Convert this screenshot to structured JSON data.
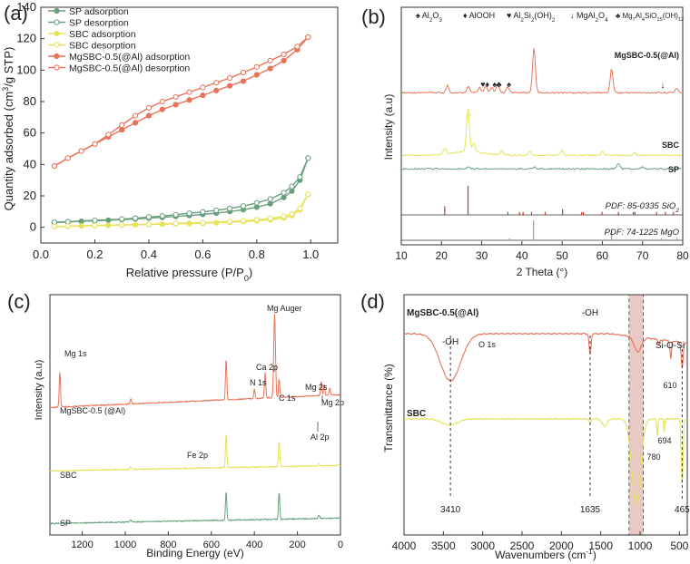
{
  "colors": {
    "sp": "#6a9f7e",
    "sbc": "#e6e25c",
    "mg": "#e8735a",
    "ref_sio2": "#c0392b",
    "ref_mgo": "#9a9a9a",
    "highlight": "#e8c9c4",
    "axis": "#333333"
  },
  "chart_data": [
    {
      "panel": "(a)",
      "type": "line",
      "xlabel": "Relative pressure (P/P",
      "xlabel_sub": "0",
      "xlabel_tail": ")",
      "ylabel": "Quantity adsorbed (cm",
      "ylabel_sup": "3",
      "ylabel_tail": "/g STP)",
      "xlim": [
        0,
        1.1
      ],
      "ylim": [
        -10,
        140
      ],
      "xticks": [
        "0.0",
        "0.2",
        "0.4",
        "0.6",
        "0.8",
        "1.0"
      ],
      "xtick_values": [
        0,
        0.2,
        0.4,
        0.6,
        0.8,
        1.0
      ],
      "yticks": [
        "0",
        "20",
        "40",
        "60",
        "80",
        "100",
        "120",
        "140"
      ],
      "ytick_values": [
        0,
        20,
        40,
        60,
        80,
        100,
        120,
        140
      ],
      "legend_position": "top-left",
      "series": [
        {
          "name": "SP adsorption",
          "color_key": "sp",
          "filled": true,
          "x": [
            0.05,
            0.1,
            0.15,
            0.2,
            0.25,
            0.3,
            0.35,
            0.4,
            0.45,
            0.5,
            0.55,
            0.6,
            0.65,
            0.7,
            0.75,
            0.8,
            0.85,
            0.9,
            0.93,
            0.96,
            0.99
          ],
          "y": [
            3,
            3.4,
            3.8,
            4.1,
            4.5,
            4.9,
            5.3,
            5.8,
            6.3,
            6.9,
            7.5,
            8.2,
            9,
            10,
            11.2,
            12.8,
            15,
            19,
            23,
            30,
            44
          ]
        },
        {
          "name": "SP desorption",
          "color_key": "sp",
          "filled": false,
          "x": [
            0.99,
            0.96,
            0.93,
            0.9,
            0.85,
            0.8,
            0.75,
            0.7,
            0.65,
            0.6,
            0.55,
            0.5,
            0.45,
            0.4,
            0.35,
            0.3,
            0.2,
            0.1,
            0.05
          ],
          "y": [
            44,
            32,
            26,
            22,
            18,
            15.5,
            13.5,
            12,
            10.8,
            9.8,
            8.9,
            8,
            7.2,
            6.5,
            5.8,
            5.2,
            4.4,
            3.6,
            3.2
          ]
        },
        {
          "name": "SBC adsorption",
          "color_key": "sbc",
          "filled": true,
          "x": [
            0.05,
            0.1,
            0.15,
            0.2,
            0.25,
            0.3,
            0.35,
            0.4,
            0.45,
            0.5,
            0.55,
            0.6,
            0.65,
            0.7,
            0.75,
            0.8,
            0.85,
            0.9,
            0.93,
            0.96,
            0.99
          ],
          "y": [
            0.4,
            0.6,
            0.8,
            1,
            1.2,
            1.4,
            1.6,
            1.8,
            2.0,
            2.2,
            2.4,
            2.6,
            2.9,
            3.2,
            3.6,
            4.1,
            4.8,
            6,
            7.5,
            11,
            21
          ]
        },
        {
          "name": "SBC desorption",
          "color_key": "sbc",
          "filled": false,
          "x": [
            0.99,
            0.96,
            0.93,
            0.9,
            0.85,
            0.8,
            0.75,
            0.7,
            0.6,
            0.5,
            0.4,
            0.3,
            0.2,
            0.1,
            0.05
          ],
          "y": [
            21,
            12,
            8.5,
            7,
            5.6,
            4.8,
            4.2,
            3.7,
            3,
            2.5,
            2,
            1.6,
            1.2,
            0.8,
            0.5
          ]
        },
        {
          "name": "MgSBC-0.5(@Al) adsorption",
          "color_key": "mg",
          "filled": true,
          "x": [
            0.05,
            0.1,
            0.15,
            0.2,
            0.25,
            0.3,
            0.35,
            0.4,
            0.45,
            0.5,
            0.55,
            0.6,
            0.65,
            0.7,
            0.75,
            0.8,
            0.85,
            0.9,
            0.95,
            0.99
          ],
          "y": [
            39,
            44,
            48.5,
            53,
            57.5,
            62,
            66.5,
            71,
            75,
            78,
            81,
            84,
            87,
            90,
            93,
            97,
            101,
            106,
            113,
            121
          ]
        },
        {
          "name": "MgSBC-0.5(@Al) desorption",
          "color_key": "mg",
          "filled": false,
          "x": [
            0.99,
            0.95,
            0.9,
            0.85,
            0.8,
            0.75,
            0.7,
            0.65,
            0.6,
            0.55,
            0.5,
            0.45,
            0.4,
            0.35,
            0.3,
            0.25,
            0.2,
            0.15,
            0.1,
            0.05
          ],
          "y": [
            121,
            115,
            110,
            106,
            102,
            98.5,
            95,
            92,
            89,
            86,
            83,
            80,
            76,
            71,
            65,
            59,
            53,
            48.5,
            44,
            39
          ]
        }
      ]
    },
    {
      "panel": "(b)",
      "type": "line",
      "xlabel": "2 Theta (°)",
      "ylabel": "Intensity (a.u)",
      "xlim": [
        10,
        80
      ],
      "xticks": [
        "10",
        "20",
        "30",
        "40",
        "50",
        "60",
        "70",
        "80"
      ],
      "xtick_values": [
        10,
        20,
        30,
        40,
        50,
        60,
        70,
        80
      ],
      "legend_items": [
        "Al",
        "AlOOH",
        "Al",
        "MgAl",
        "Mg"
      ],
      "legend_text": {
        "al2o3": [
          "Al",
          "2",
          "O",
          "3"
        ],
        "alooh": "AlOOH",
        "alsi": [
          "Al",
          "2",
          "Si",
          "2",
          "(OH)",
          "2"
        ],
        "mgal": [
          "MgAl",
          "2",
          "O",
          "4"
        ],
        "mgalsi": [
          "Mg",
          "7",
          "Al",
          "4",
          "SiO",
          "15",
          "(OH)",
          "12"
        ]
      },
      "series": [
        {
          "name": "MgSBC-0.5(@Al)",
          "color_key": "mg",
          "peaks": [
            [
              21.5,
              8
            ],
            [
              26.6,
              7
            ],
            [
              29.5,
              6
            ],
            [
              31,
              7
            ],
            [
              32.5,
              6
            ],
            [
              34,
              9
            ],
            [
              36.5,
              6
            ],
            [
              43,
              50
            ],
            [
              62.3,
              26
            ],
            [
              78.5,
              5
            ]
          ]
        },
        {
          "name": "SBC",
          "color_key": "sbc",
          "peaks": [
            [
              20.8,
              7
            ],
            [
              26.6,
              48
            ],
            [
              28,
              10
            ],
            [
              35,
              5
            ],
            [
              42,
              4
            ],
            [
              50,
              6
            ],
            [
              60,
              4
            ],
            [
              68,
              3
            ]
          ]
        },
        {
          "name": "SP",
          "color_key": "sp",
          "peaks": [
            [
              26.6,
              2
            ],
            [
              43,
              2
            ],
            [
              64,
              6
            ],
            [
              70,
              2
            ]
          ]
        }
      ],
      "references": [
        {
          "name": "PDF: 85-0335 SiO",
          "sub": "2",
          "color_key": "ref_sio2",
          "positions": [
            20.8,
            26.6,
            36.5,
            39.4,
            40.3,
            42.4,
            45.8,
            50.1,
            54.9,
            55.3,
            59.9,
            64.0,
            67.7,
            68.1,
            73.5,
            75.7,
            77.7
          ],
          "heights": [
            0.3,
            1,
            0.1,
            0.1,
            0.1,
            0.1,
            0.1,
            0.2,
            0.1,
            0.1,
            0.1,
            0.1,
            0.1,
            0.1,
            0.1,
            0.1,
            0.1
          ]
        },
        {
          "name": "PDF: 74-1225 MgO",
          "sub": "",
          "color_key": "ref_mgo",
          "positions": [
            36.9,
            42.9,
            62.3,
            74.7,
            78.6
          ],
          "heights": [
            0.1,
            1,
            0.5,
            0.1,
            0.1
          ]
        }
      ]
    },
    {
      "panel": "(c)",
      "type": "line",
      "xlabel": "Binding Energy (eV)",
      "ylabel": "Intensity (a.u)",
      "xlim": [
        1350,
        0
      ],
      "xticks": [
        "1200",
        "1000",
        "800",
        "600",
        "400",
        "200",
        "0"
      ],
      "xtick_values": [
        1200,
        1000,
        800,
        600,
        400,
        200,
        0
      ],
      "annotations": [
        "Mg 1s",
        "O 1s",
        "Mg Auger",
        "Ca 2p",
        "N 1s",
        "C 1s",
        "Mg 2s",
        "Mg 2p",
        "Al 2p",
        "Fe 2p"
      ],
      "series": [
        {
          "name": "MgSBC-0.5 (@Al)",
          "color_key": "mg",
          "peaks": [
            [
              1304,
              38
            ],
            [
              975,
              6
            ],
            [
              531,
              45
            ],
            [
              350,
              28
            ],
            [
              400,
              10
            ],
            [
              306,
              92
            ],
            [
              285,
              20
            ],
            [
              89,
              16
            ],
            [
              75,
              12
            ],
            [
              50,
              8
            ]
          ]
        },
        {
          "name": "SBC",
          "color_key": "sbc",
          "peaks": [
            [
              531,
              38
            ],
            [
              285,
              28
            ],
            [
              975,
              3
            ],
            [
              100,
              3
            ]
          ]
        },
        {
          "name": "SP",
          "color_key": "sp",
          "peaks": [
            [
              531,
              32
            ],
            [
              285,
              30
            ],
            [
              975,
              3
            ],
            [
              100,
              4
            ]
          ]
        }
      ]
    },
    {
      "panel": "(d)",
      "type": "line",
      "xlabel": "Wavenumbers (cm",
      "xlabel_sup": "-1",
      "xlabel_tail": ")",
      "ylabel": "Transmittance (%)",
      "xlim": [
        4000,
        400
      ],
      "xticks": [
        "4000",
        "3500",
        "3000",
        "2500",
        "2000",
        "1500",
        "1000",
        "500"
      ],
      "xtick_values": [
        4000,
        3500,
        3000,
        2500,
        2000,
        1500,
        1000,
        500
      ],
      "band_labels": [
        "-OH",
        "-OH",
        "Si-O-Si"
      ],
      "vline_labels": [
        "3410",
        "1635",
        "465"
      ],
      "point_labels": [
        "610",
        "780",
        "694"
      ],
      "series": [
        {
          "name": "MgSBC-0.5(@Al)",
          "color_key": "mg",
          "dips": [
            [
              3410,
              52,
              260
            ],
            [
              1635,
              22,
              25
            ],
            [
              1030,
              16,
              90
            ],
            [
              760,
              6,
              20
            ],
            [
              610,
              20,
              18
            ],
            [
              465,
              28,
              25
            ]
          ]
        },
        {
          "name": "SBC",
          "color_key": "sbc",
          "dips": [
            [
              3420,
              7,
              200
            ],
            [
              1635,
              4,
              25
            ],
            [
              1450,
              8,
              60
            ],
            [
              1050,
              95,
              110
            ],
            [
              780,
              18,
              15
            ],
            [
              694,
              14,
              12
            ],
            [
              465,
              70,
              25
            ]
          ]
        }
      ]
    }
  ]
}
